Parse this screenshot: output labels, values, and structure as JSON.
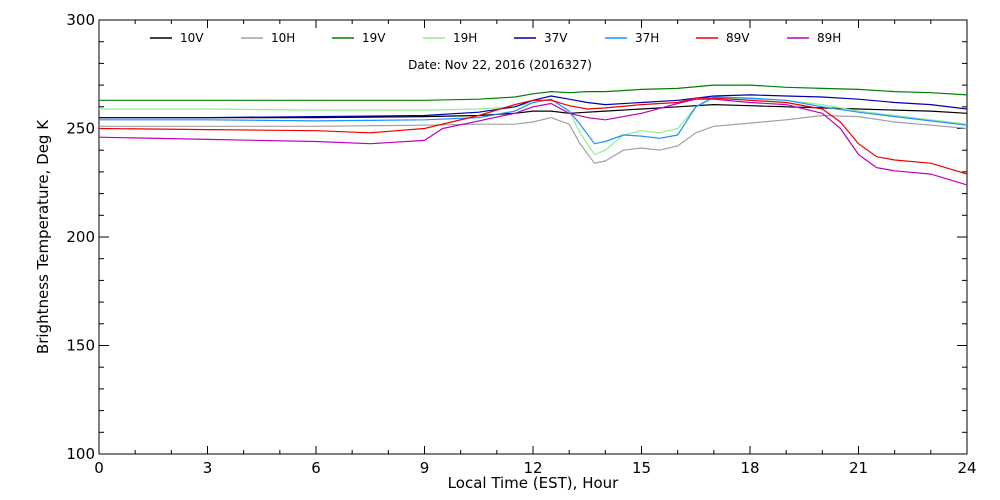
{
  "chart_data": {
    "type": "line",
    "title": "Date: Nov 22, 2016 (2016327)",
    "xlabel": "Local Time (EST), Hour",
    "ylabel": "Brightness Temperature, Deg K",
    "xlim": [
      0,
      24
    ],
    "ylim": [
      100,
      300
    ],
    "xticks": [
      0,
      3,
      6,
      9,
      12,
      15,
      18,
      21,
      24
    ],
    "yticks": [
      100,
      150,
      200,
      250,
      300
    ],
    "grid": false,
    "legend_position": "top",
    "series": [
      {
        "name": "10V",
        "color": "#000000",
        "x": [
          0,
          3,
          6,
          9,
          10.5,
          11.5,
          12,
          12.5,
          13,
          13.5,
          14,
          15,
          16,
          17,
          18,
          19,
          20,
          21,
          22,
          23,
          24
        ],
        "y": [
          255,
          255,
          255,
          255.5,
          256,
          257,
          258,
          258,
          257,
          257.5,
          258,
          259,
          260,
          261,
          260.5,
          260,
          259.5,
          259,
          258.5,
          258,
          257
        ]
      },
      {
        "name": "10H",
        "color": "#a0a0a0",
        "x": [
          0,
          3,
          6,
          9,
          10.5,
          11.5,
          12,
          12.5,
          13,
          13.3,
          13.7,
          14,
          14.5,
          15,
          15.5,
          16,
          16.5,
          17,
          18,
          19,
          20,
          21,
          22,
          23,
          24
        ],
        "y": [
          251,
          251,
          251,
          251.5,
          252,
          252,
          253,
          255,
          252,
          243,
          234,
          235,
          240,
          241,
          240,
          242,
          248,
          251,
          252.5,
          254,
          256,
          255.5,
          253,
          251.5,
          250
        ]
      },
      {
        "name": "19V",
        "color": "#008000",
        "x": [
          0,
          3,
          6,
          9,
          10.5,
          11.5,
          12,
          12.5,
          13,
          13.5,
          14,
          15,
          16,
          17,
          18,
          19,
          20,
          21,
          22,
          23,
          24
        ],
        "y": [
          263,
          263,
          263,
          263,
          263.5,
          264.5,
          266,
          267,
          266.5,
          267,
          267,
          268,
          268.5,
          270,
          270,
          269,
          268.5,
          268,
          267,
          266.5,
          265.5
        ]
      },
      {
        "name": "19H",
        "color": "#90ee90",
        "x": [
          0,
          3,
          6,
          9,
          10.5,
          11.5,
          12,
          12.5,
          13,
          13.3,
          13.7,
          14,
          14.5,
          15,
          15.5,
          16,
          16.5,
          17,
          18,
          19,
          20,
          21,
          22,
          23,
          24
        ],
        "y": [
          259,
          259,
          258.5,
          258.5,
          259,
          260,
          262,
          263.5,
          258,
          248,
          238,
          240,
          247,
          249,
          248,
          250,
          260,
          264,
          263.5,
          263,
          261,
          258,
          256,
          254,
          252
        ]
      },
      {
        "name": "37V",
        "color": "#0000aa",
        "x": [
          0,
          3,
          6,
          9,
          10.5,
          11.5,
          12,
          12.5,
          13,
          13.5,
          14,
          15,
          16,
          17,
          18,
          19,
          20,
          21,
          22,
          23,
          24
        ],
        "y": [
          255,
          255,
          255.5,
          256,
          257.5,
          260,
          263,
          265,
          263.5,
          262,
          261,
          262,
          263,
          265,
          265.5,
          265,
          264.5,
          263.5,
          262,
          261,
          259
        ]
      },
      {
        "name": "37H",
        "color": "#1e90ff",
        "x": [
          0,
          3,
          6,
          9,
          10.5,
          11.5,
          12,
          12.5,
          13,
          13.3,
          13.7,
          14,
          14.5,
          15,
          15.5,
          16,
          16.5,
          17,
          18,
          19,
          20,
          21,
          22,
          23,
          24
        ],
        "y": [
          254,
          254,
          253.5,
          254,
          255,
          258,
          262,
          263.5,
          258,
          252,
          243,
          244,
          247,
          246.5,
          245.5,
          247,
          260,
          264.5,
          264,
          263,
          260,
          257.5,
          255.5,
          253.5,
          251.5
        ]
      },
      {
        "name": "89V",
        "color": "#ee0000",
        "x": [
          0,
          3,
          6,
          7.5,
          9,
          10.5,
          11.5,
          12,
          12.5,
          13,
          13.5,
          14,
          15,
          16,
          16.5,
          17,
          18,
          19,
          20,
          20.5,
          21,
          21.5,
          22,
          23,
          24
        ],
        "y": [
          250,
          249.5,
          249,
          248,
          250,
          256,
          261,
          263,
          263,
          260.5,
          259,
          259.5,
          261,
          262,
          264,
          264,
          263,
          262,
          259,
          253,
          243,
          237,
          235.5,
          234,
          229
        ]
      },
      {
        "name": "89H",
        "color": "#c000c0",
        "x": [
          0,
          3,
          6,
          7.5,
          9,
          9.5,
          10.5,
          11.5,
          12,
          12.5,
          13,
          13.5,
          14,
          15,
          16,
          16.5,
          17,
          18,
          19,
          20,
          20.5,
          21,
          21.5,
          22,
          23,
          24
        ],
        "y": [
          246,
          245,
          244,
          243,
          244.5,
          250,
          253.5,
          257,
          260,
          261.5,
          257,
          255,
          254,
          257,
          261.5,
          263.5,
          263.5,
          262,
          261,
          257,
          250,
          238,
          232,
          230.5,
          229,
          224
        ]
      }
    ]
  }
}
